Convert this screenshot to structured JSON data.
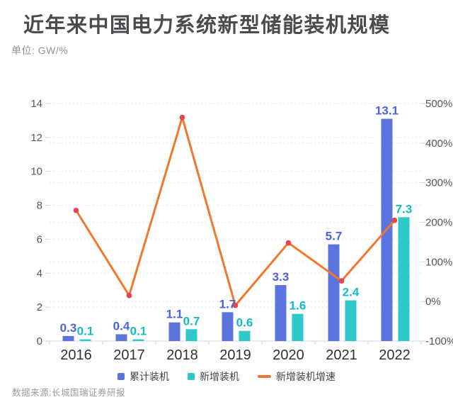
{
  "header": {
    "title": "近年来中国电力系统新型储能装机规模",
    "subtitle": "单位: GW/%"
  },
  "footer": {
    "source": "数据来源:长城国瑞证券研报"
  },
  "colors": {
    "cumulative_bar": "#5b74de",
    "cumulative_label": "#4a63d8",
    "new_bar": "#2ec8c9",
    "new_label": "#13bcc5",
    "growth_line": "#f0772e",
    "growth_marker": "#e8414f",
    "gridline": "#e6e6ec",
    "axis_line": "#d4d4da",
    "tick_text": "#54555b",
    "year_text": "#2e3136"
  },
  "chart_data": {
    "type": "bar",
    "subtype": "grouped-bars-with-line",
    "title": "近年来中国电力系统新型储能装机规模",
    "unit_label": "单位: GW/%",
    "categories": [
      "2016",
      "2017",
      "2018",
      "2019",
      "2020",
      "2021",
      "2022"
    ],
    "series": [
      {
        "key": "cumulative",
        "name": "累计装机",
        "type": "bar",
        "axis": "left",
        "values": [
          0.3,
          0.4,
          1.1,
          1.7,
          3.3,
          5.7,
          13.1
        ],
        "labels": [
          "0.3",
          "0.4",
          "1.1",
          "1.7",
          "3.3",
          "5.7",
          "13.1"
        ]
      },
      {
        "key": "new-installed",
        "name": "新增装机",
        "type": "bar",
        "axis": "left",
        "values": [
          0.1,
          0.1,
          0.7,
          0.6,
          1.6,
          2.4,
          7.3
        ],
        "labels": [
          "0.1",
          "0.1",
          "0.7",
          "0.6",
          "1.6",
          "2.4",
          "7.3"
        ]
      },
      {
        "key": "growth-rate",
        "name": "新增装机增速",
        "type": "line",
        "axis": "right",
        "values": [
          230,
          15,
          465,
          -10,
          148,
          52,
          205
        ]
      }
    ],
    "left_axis": {
      "min": 0,
      "max": 14,
      "step": 2,
      "tick_labels": [
        "0",
        "2",
        "4",
        "6",
        "8",
        "10",
        "12",
        "14"
      ]
    },
    "right_axis": {
      "min": -100,
      "max": 500,
      "step": 100,
      "tick_labels": [
        "-100%",
        "0%",
        "100%",
        "200%",
        "300%",
        "400%",
        "500%"
      ]
    },
    "grid": "dotted horizontal (both axes scales)",
    "legend_position": "bottom"
  }
}
